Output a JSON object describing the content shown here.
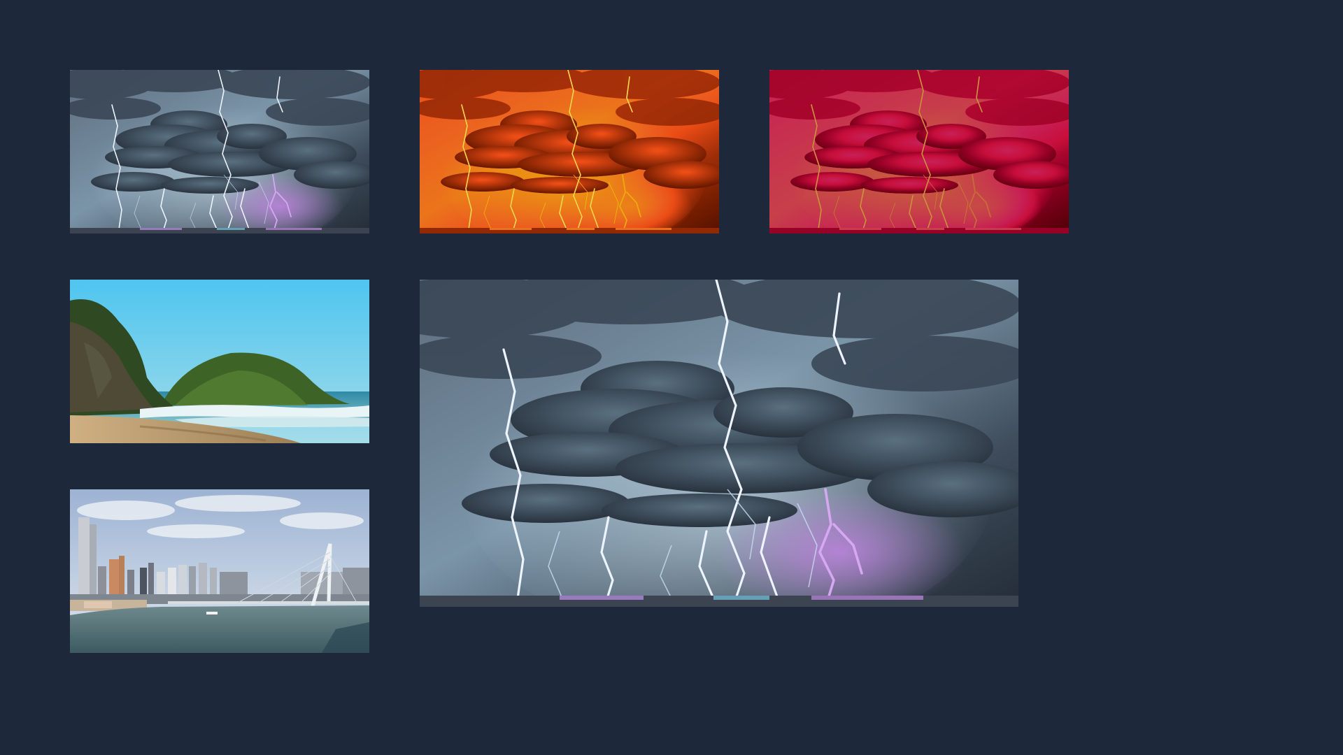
{
  "gallery": {
    "background": "#1d283b",
    "thumbnails": [
      {
        "scene": "storm-lightning",
        "variant": "original",
        "selected": false
      },
      {
        "scene": "storm-lightning",
        "variant": "warm-orange-filter",
        "selected": false
      },
      {
        "scene": "storm-lightning",
        "variant": "red-filter",
        "selected": false
      },
      {
        "scene": "beach-cliffs",
        "variant": "original",
        "selected": false
      },
      {
        "scene": "city-bridge-river",
        "variant": "original",
        "selected": false
      }
    ],
    "preview": {
      "scene": "storm-lightning",
      "variant": "original"
    }
  },
  "palette": {
    "storm_sky": "#4a5a6a",
    "lightning": "#e8f0ff",
    "lightning_purple": "#c080e0",
    "beach_sky": "#56c8ec",
    "sea": "#2c8ca6",
    "sand": "#c8a878",
    "foliage": "#3f6a2a",
    "city_sky": "#b8c8dc",
    "river": "#4c6a70"
  }
}
